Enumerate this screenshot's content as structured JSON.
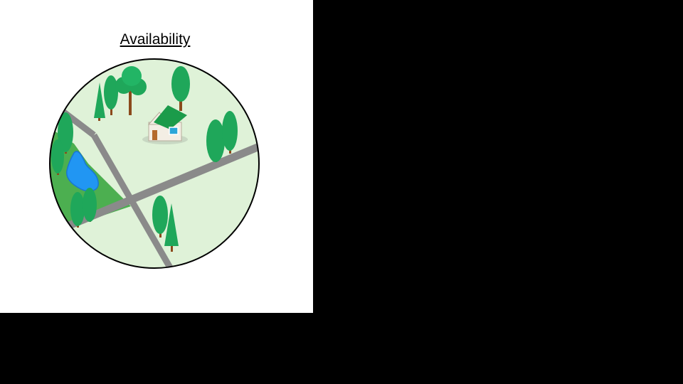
{
  "panel": {
    "title": "Availability"
  },
  "illustration": {
    "subject": "map",
    "elements": [
      "house-icon",
      "tree-icon",
      "pine-tree-icon",
      "pond",
      "park",
      "road"
    ]
  },
  "colors": {
    "background": "#000000",
    "panel": "#ffffff",
    "map_fill": "#dff2d8",
    "park": "#4caf50",
    "pond": "#2196f3",
    "road": "#8a8a8a",
    "tree": "#1fa75a",
    "trunk": "#8b4a1c",
    "roof": "#1b9b4a"
  }
}
